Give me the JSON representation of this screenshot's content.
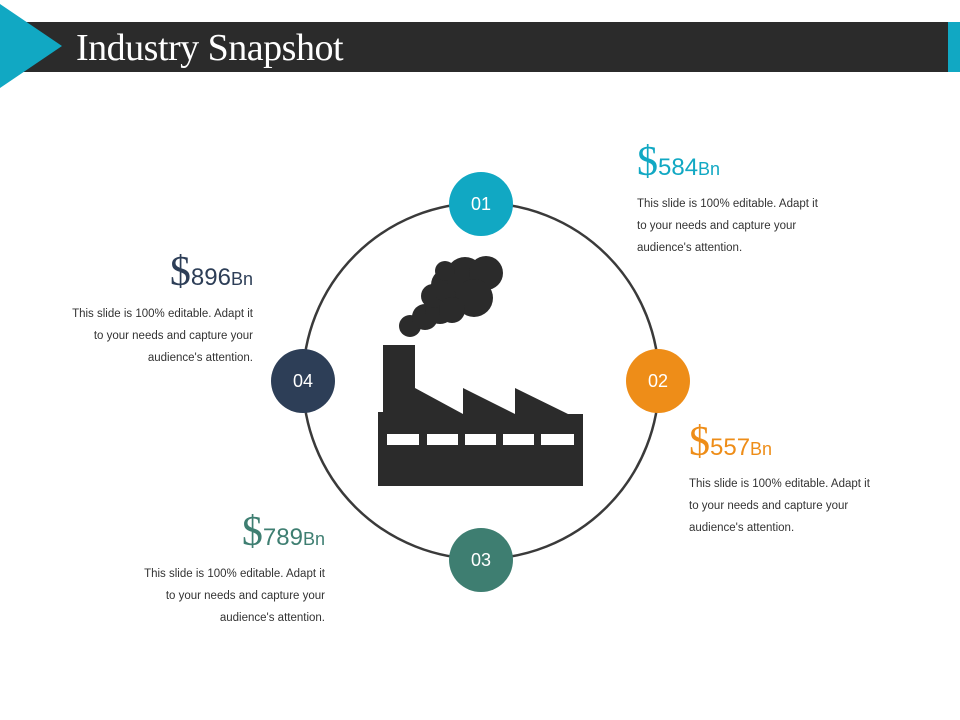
{
  "title": "Industry Snapshot",
  "colors": {
    "accent": "#11a8c3",
    "step1": "#11a8c3",
    "step2": "#ee8d18",
    "step3": "#3e7e71",
    "step4": "#2d3e57",
    "dark": "#2b2b2b"
  },
  "steps": [
    {
      "number": "01",
      "currency": "$",
      "value": "584",
      "unit": "Bn",
      "desc": [
        "This slide is 100% editable. Adapt it",
        "to your needs and capture your",
        "audience's attention."
      ]
    },
    {
      "number": "02",
      "currency": "$",
      "value": "557",
      "unit": "Bn",
      "desc": [
        "This slide is 100% editable. Adapt it",
        "to your needs and capture your",
        "audience's attention."
      ]
    },
    {
      "number": "03",
      "currency": "$",
      "value": "789",
      "unit": "Bn",
      "desc": [
        "This slide is 100% editable. Adapt it",
        "to your needs and capture your",
        "audience's attention."
      ]
    },
    {
      "number": "04",
      "currency": "$",
      "value": "896",
      "unit": "Bn",
      "desc": [
        "This slide is 100% editable. Adapt it",
        "to your needs and capture your",
        "audience's attention."
      ]
    }
  ],
  "center_icon": "factory-icon"
}
